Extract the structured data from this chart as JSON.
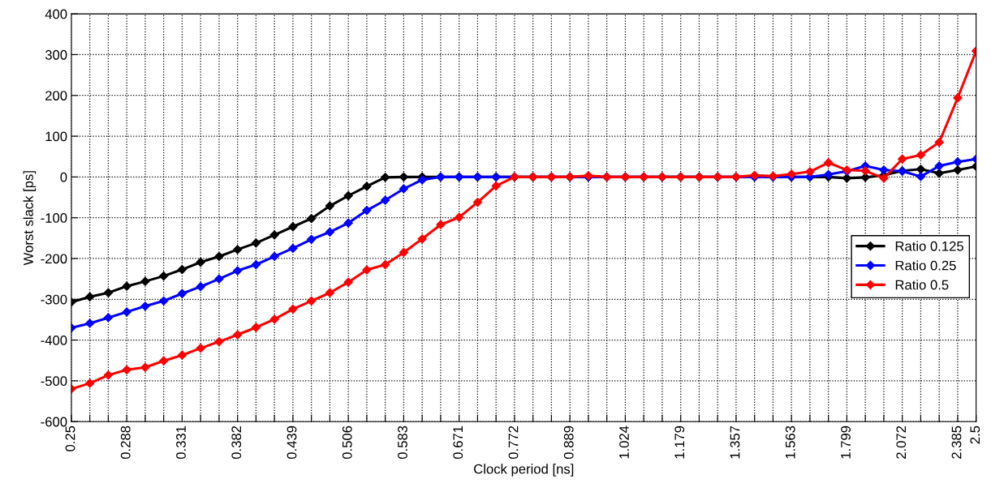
{
  "chart_data": {
    "type": "line",
    "xlabel": "Clock period [ns]",
    "ylabel": "Worst slack [ps]",
    "categories": [
      "0.25",
      null,
      null,
      "0.288",
      null,
      null,
      "0.331",
      null,
      null,
      "0.382",
      null,
      null,
      "0.439",
      null,
      null,
      "0.506",
      null,
      null,
      "0.583",
      null,
      null,
      "0.671",
      null,
      null,
      "0.772",
      null,
      null,
      "0.889",
      null,
      null,
      "1.024",
      null,
      null,
      "1.179",
      null,
      null,
      "1.357",
      null,
      null,
      "1.563",
      null,
      null,
      "1.799",
      null,
      null,
      "2.072",
      null,
      null,
      "2.385",
      "2.5"
    ],
    "series": [
      {
        "name": "Ratio 0.125",
        "color": "#000000",
        "values": [
          -307,
          -294,
          -284,
          -268,
          -256,
          -243,
          -227,
          -209,
          -195,
          -178,
          -162,
          -142,
          -122,
          -102,
          -71,
          -46,
          -23,
          -1,
          0,
          0,
          0,
          0,
          0,
          0,
          0,
          0,
          0,
          0,
          0,
          0,
          0,
          0,
          0,
          0,
          0,
          0,
          0,
          0,
          0,
          0,
          0,
          0,
          -3,
          -1,
          4,
          15,
          19,
          9,
          17,
          26
        ]
      },
      {
        "name": "Ratio 0.25",
        "color": "#0000ff",
        "values": [
          -370,
          -359,
          -345,
          -331,
          -317,
          -304,
          -286,
          -269,
          -250,
          -230,
          -215,
          -195,
          -175,
          -153,
          -135,
          -113,
          -82,
          -57,
          -29,
          -7,
          0,
          0,
          0,
          0,
          0,
          0,
          0,
          0,
          0,
          0,
          0,
          0,
          0,
          0,
          0,
          0,
          0,
          0,
          0,
          0,
          0,
          6,
          14,
          27,
          17,
          14,
          1,
          27,
          37,
          44
        ]
      },
      {
        "name": "Ratio 0.5",
        "color": "#ff0000",
        "values": [
          -520,
          -506,
          -486,
          -473,
          -467,
          -451,
          -437,
          -420,
          -404,
          -387,
          -369,
          -349,
          -324,
          -304,
          -284,
          -258,
          -228,
          -215,
          -185,
          -152,
          -117,
          -99,
          -62,
          -22,
          0,
          0,
          0,
          0,
          3,
          0,
          0,
          0,
          0,
          0,
          0,
          0,
          0,
          4,
          2,
          7,
          13,
          35,
          17,
          15,
          -3,
          44,
          54,
          85,
          194,
          309
        ]
      }
    ],
    "ylim": [
      -600,
      400
    ],
    "yticks": [
      -600,
      -500,
      -400,
      -300,
      -200,
      -100,
      0,
      100,
      200,
      300,
      400
    ],
    "grid": true,
    "legend": "right",
    "marker": "diamond",
    "line_style": "solid"
  }
}
